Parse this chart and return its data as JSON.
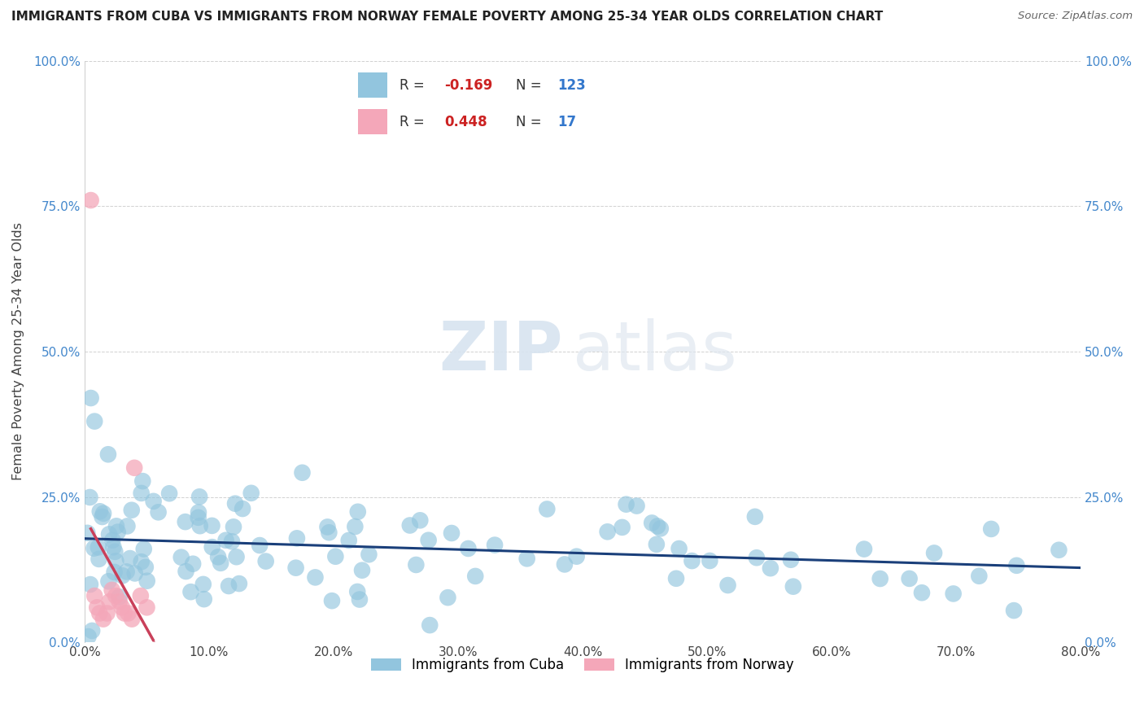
{
  "title": "IMMIGRANTS FROM CUBA VS IMMIGRANTS FROM NORWAY FEMALE POVERTY AMONG 25-34 YEAR OLDS CORRELATION CHART",
  "source": "Source: ZipAtlas.com",
  "ylabel": "Female Poverty Among 25-34 Year Olds",
  "legend_cuba": "Immigrants from Cuba",
  "legend_norway": "Immigrants from Norway",
  "R_cuba": -0.169,
  "N_cuba": 123,
  "R_norway": 0.448,
  "N_norway": 17,
  "cuba_color": "#92c5de",
  "norway_color": "#f4a7b9",
  "cuba_line_color": "#1a3f7a",
  "norway_line_color": "#c9405a",
  "watermark_zip": "ZIP",
  "watermark_atlas": "atlas",
  "xlim": [
    0.0,
    0.8
  ],
  "ylim": [
    0.0,
    1.0
  ],
  "yticks": [
    0.0,
    0.25,
    0.5,
    0.75,
    1.0
  ],
  "xticks": [
    0.0,
    0.1,
    0.2,
    0.3,
    0.4,
    0.5,
    0.6,
    0.7,
    0.8
  ]
}
